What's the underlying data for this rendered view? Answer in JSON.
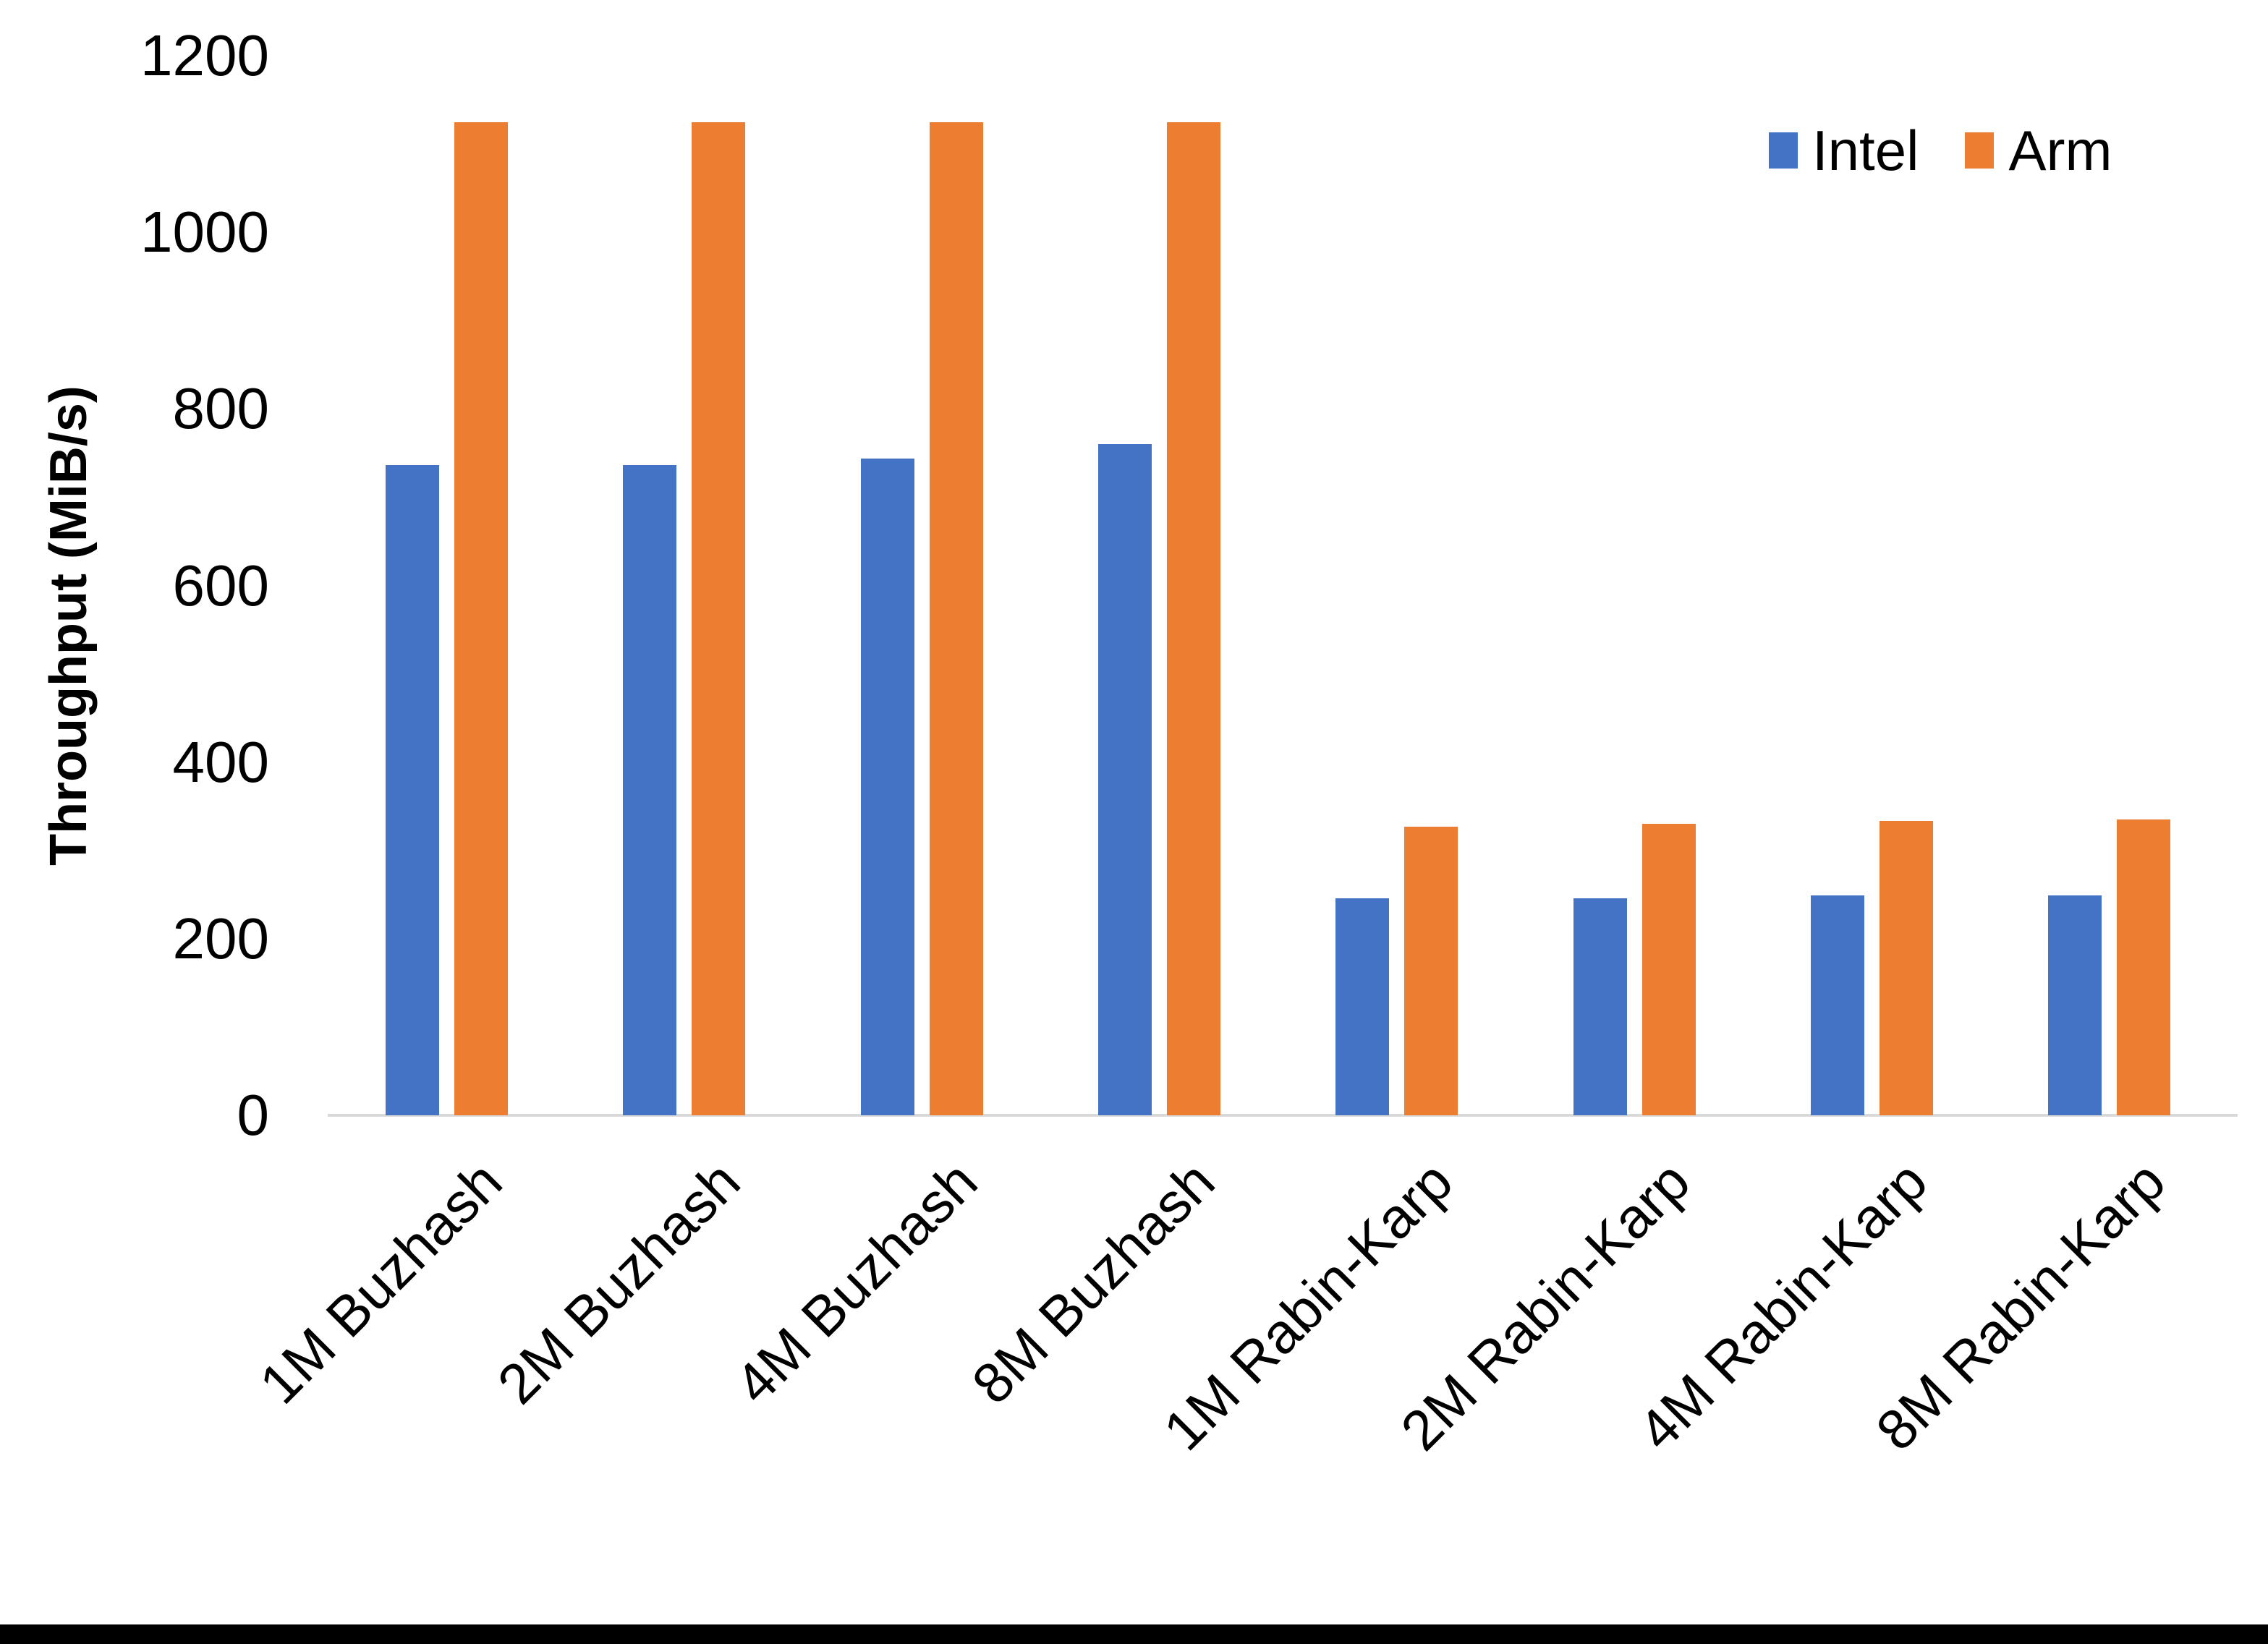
{
  "chart_data": {
    "type": "bar",
    "title": "",
    "ylabel": "Throughput (MiB/s)",
    "xlabel": "",
    "categories": [
      "1M Buzhash",
      "2M Buzhash",
      "4M Buzhash",
      "8M Buzhash",
      "1M Rabin-Karp",
      "2M Rabin-Karp",
      "4M Rabin-Karp",
      "8M Rabin-Karp"
    ],
    "series": [
      {
        "name": "Intel",
        "color": "#4472C4",
        "values": [
          736,
          736,
          744,
          760,
          246,
          246,
          249,
          249
        ]
      },
      {
        "name": "Arm",
        "color": "#ED7D31",
        "values": [
          1125,
          1125,
          1125,
          1125,
          327,
          330,
          333,
          335
        ]
      }
    ],
    "ylim": [
      0,
      1200
    ],
    "yticks": [
      0,
      200,
      400,
      600,
      800,
      1000,
      1200
    ],
    "grid": false,
    "legend_position": "top-right",
    "axis_line_color": "#D9D9D9",
    "text_color": "#000000"
  }
}
